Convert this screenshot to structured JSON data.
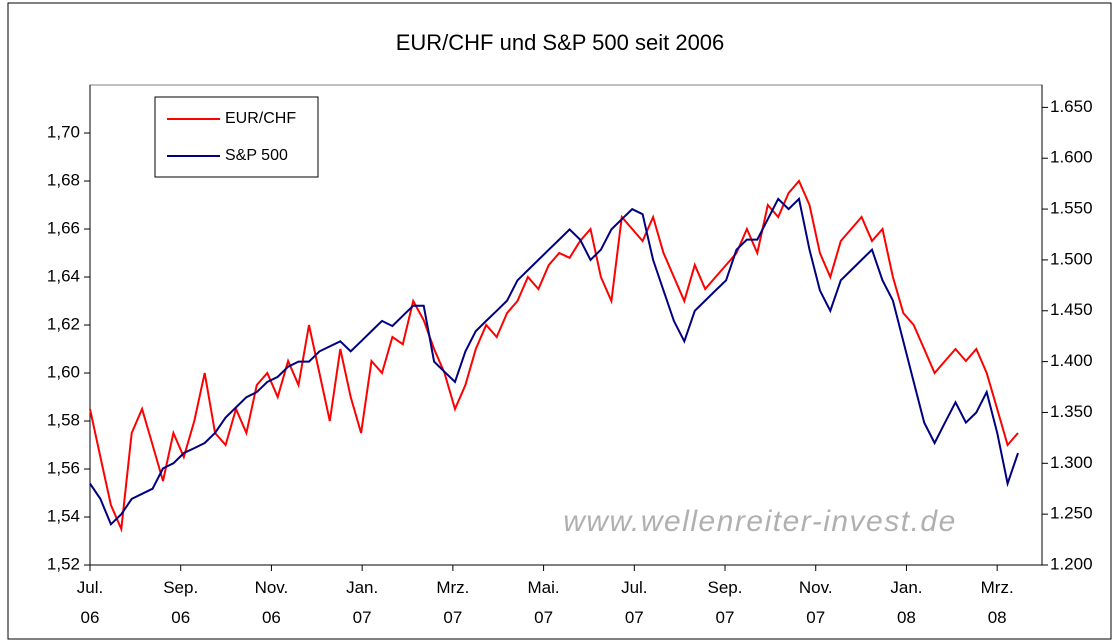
{
  "chart_data": {
    "type": "line",
    "title": "EUR/CHF und S&P 500 seit 2006",
    "watermark": "www.wellenreiter-invest.de",
    "legend": "upper left",
    "x": [
      0,
      1,
      2,
      3,
      4,
      5,
      6,
      7,
      8,
      9,
      10,
      11,
      12,
      13,
      14,
      15,
      16,
      17,
      18,
      19,
      20,
      21,
      22,
      23,
      24,
      25,
      26,
      27,
      28,
      29,
      30,
      31,
      32,
      33,
      34,
      35,
      36,
      37,
      38,
      39,
      40,
      41,
      42,
      43,
      44,
      45,
      46,
      47,
      48,
      49,
      50,
      51,
      52,
      53,
      54,
      55,
      56,
      57,
      58,
      59,
      60,
      61,
      62,
      63,
      64,
      65,
      66,
      67,
      68,
      69,
      70,
      71,
      72,
      73,
      74,
      75,
      76,
      77,
      78,
      79,
      80,
      81,
      82,
      83,
      84,
      85,
      86,
      87,
      88,
      89
    ],
    "xlim": [
      0,
      91.3
    ],
    "xticks": [
      {
        "value": 0,
        "label": "Jul.\n06"
      },
      {
        "value": 8.7,
        "label": "Sep.\n06"
      },
      {
        "value": 17.4,
        "label": "Nov.\n06"
      },
      {
        "value": 26.1,
        "label": "Jan.\n07"
      },
      {
        "value": 34.8,
        "label": "Mrz.\n07"
      },
      {
        "value": 43.5,
        "label": "Mai.\n07"
      },
      {
        "value": 52.2,
        "label": "Jul.\n07"
      },
      {
        "value": 60.9,
        "label": "Sep.\n07"
      },
      {
        "value": 69.6,
        "label": "Nov.\n07"
      },
      {
        "value": 78.3,
        "label": "Jan.\n08"
      },
      {
        "value": 87,
        "label": "Mrz.\n08"
      }
    ],
    "ylim": [
      1.52,
      1.72
    ],
    "yticks": [
      {
        "value": 1.52,
        "label": "1,52"
      },
      {
        "value": 1.54,
        "label": "1,54"
      },
      {
        "value": 1.56,
        "label": "1,56"
      },
      {
        "value": 1.58,
        "label": "1,58"
      },
      {
        "value": 1.6,
        "label": "1,60"
      },
      {
        "value": 1.62,
        "label": "1,62"
      },
      {
        "value": 1.64,
        "label": "1,64"
      },
      {
        "value": 1.66,
        "label": "1,66"
      },
      {
        "value": 1.68,
        "label": "1,68"
      },
      {
        "value": 1.7,
        "label": "1,70"
      }
    ],
    "y2lim": [
      1.2,
      1.672
    ],
    "y2ticks": [
      {
        "value": 1.2,
        "label": "1.200"
      },
      {
        "value": 1.25,
        "label": "1.250"
      },
      {
        "value": 1.3,
        "label": "1.300"
      },
      {
        "value": 1.35,
        "label": "1.350"
      },
      {
        "value": 1.4,
        "label": "1.400"
      },
      {
        "value": 1.45,
        "label": "1.450"
      },
      {
        "value": 1.5,
        "label": "1.500"
      },
      {
        "value": 1.55,
        "label": "1.550"
      },
      {
        "value": 1.6,
        "label": "1.600"
      },
      {
        "value": 1.65,
        "label": "1.650"
      }
    ],
    "series": [
      {
        "name": "EUR/CHF",
        "color": "#ff0000",
        "values": [
          1.585,
          1.565,
          1.545,
          1.535,
          1.575,
          1.585,
          1.57,
          1.555,
          1.575,
          1.565,
          1.58,
          1.6,
          1.575,
          1.57,
          1.585,
          1.575,
          1.595,
          1.6,
          1.59,
          1.605,
          1.595,
          1.62,
          1.6,
          1.58,
          1.61,
          1.59,
          1.575,
          1.605,
          1.6,
          1.615,
          1.612,
          1.63,
          1.622,
          1.61,
          1.6,
          1.585,
          1.595,
          1.61,
          1.62,
          1.615,
          1.625,
          1.63,
          1.64,
          1.635,
          1.645,
          1.65,
          1.648,
          1.655,
          1.66,
          1.64,
          1.63,
          1.665,
          1.66,
          1.655,
          1.665,
          1.65,
          1.64,
          1.63,
          1.645,
          1.635,
          1.64,
          1.645,
          1.65,
          1.66,
          1.65,
          1.67,
          1.665,
          1.675,
          1.68,
          1.67,
          1.65,
          1.64,
          1.655,
          1.66,
          1.665,
          1.655,
          1.66,
          1.64,
          1.625,
          1.62,
          1.61,
          1.6,
          1.605,
          1.61,
          1.605,
          1.61,
          1.6,
          1.585,
          1.57,
          1.575
        ]
      },
      {
        "name": "S&P 500",
        "color": "#000080",
        "axis": "y2",
        "values": [
          1.28,
          1.265,
          1.24,
          1.25,
          1.265,
          1.27,
          1.275,
          1.295,
          1.3,
          1.31,
          1.315,
          1.32,
          1.33,
          1.345,
          1.355,
          1.365,
          1.37,
          1.38,
          1.385,
          1.395,
          1.4,
          1.4,
          1.41,
          1.415,
          1.42,
          1.41,
          1.42,
          1.43,
          1.44,
          1.435,
          1.445,
          1.455,
          1.455,
          1.4,
          1.39,
          1.38,
          1.41,
          1.43,
          1.44,
          1.45,
          1.46,
          1.48,
          1.49,
          1.5,
          1.51,
          1.52,
          1.53,
          1.52,
          1.5,
          1.51,
          1.53,
          1.54,
          1.55,
          1.545,
          1.5,
          1.47,
          1.44,
          1.42,
          1.45,
          1.46,
          1.47,
          1.48,
          1.51,
          1.52,
          1.52,
          1.54,
          1.56,
          1.55,
          1.56,
          1.51,
          1.47,
          1.45,
          1.48,
          1.49,
          1.5,
          1.51,
          1.48,
          1.46,
          1.42,
          1.38,
          1.34,
          1.32,
          1.34,
          1.36,
          1.34,
          1.35,
          1.37,
          1.33,
          1.28,
          1.31
        ]
      }
    ]
  }
}
